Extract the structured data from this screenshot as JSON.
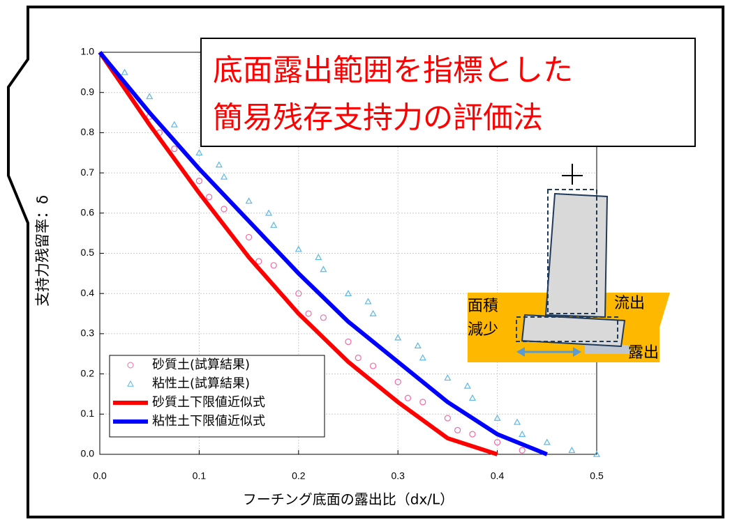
{
  "chart_data": {
    "type": "scatter",
    "title": [
      "底面露出範囲を指標とした",
      "簡易残存支持力の評価法"
    ],
    "x_label": "フーチング底面の露出比（dx/L）",
    "y_label": "支持力残留率：δ",
    "annotations": [
      "面積",
      "減少",
      "流出",
      "露出"
    ],
    "xlim": [
      0,
      0.5
    ],
    "ylim": [
      0,
      1
    ],
    "xticks": [
      {
        "value": 0,
        "label": "0.0"
      },
      0.1,
      0.2,
      0.3,
      0.4,
      0.5
    ],
    "yticks": [
      {
        "value": 0,
        "label": "0.0"
      },
      0.1,
      0.2,
      0.3,
      0.4,
      0.5,
      0.6,
      0.7,
      0.8,
      0.9,
      {
        "value": 1,
        "label": "1.0"
      }
    ],
    "grid": true,
    "series": [
      {
        "name": "砂質土(試算結果)",
        "mode": "circle",
        "color": "#f06aa8",
        "x": [
          0.025,
          0.05,
          0.075,
          0.1,
          0.125,
          0.15,
          0.175,
          0.2,
          0.225,
          0.25,
          0.275,
          0.3,
          0.325,
          0.35,
          0.375,
          0.4,
          0.425,
          0.06,
          0.11,
          0.16,
          0.21,
          0.26,
          0.31,
          0.36
        ],
        "y": [
          0.92,
          0.84,
          0.76,
          0.68,
          0.61,
          0.54,
          0.47,
          0.4,
          0.34,
          0.28,
          0.22,
          0.18,
          0.13,
          0.09,
          0.05,
          0.03,
          0.01,
          0.8,
          0.64,
          0.48,
          0.35,
          0.24,
          0.14,
          0.06
        ]
      },
      {
        "name": "粘性土(試算結果)",
        "mode": "triangle",
        "color": "#5bb8e8",
        "x": [
          0.025,
          0.05,
          0.075,
          0.1,
          0.125,
          0.15,
          0.175,
          0.2,
          0.225,
          0.25,
          0.275,
          0.3,
          0.325,
          0.35,
          0.375,
          0.4,
          0.425,
          0.45,
          0.475,
          0.5,
          0.12,
          0.17,
          0.22,
          0.27,
          0.32,
          0.37,
          0.42
        ],
        "y": [
          0.95,
          0.89,
          0.82,
          0.75,
          0.69,
          0.63,
          0.57,
          0.51,
          0.46,
          0.4,
          0.35,
          0.29,
          0.24,
          0.19,
          0.14,
          0.09,
          0.05,
          0.03,
          0.01,
          0,
          0.72,
          0.6,
          0.49,
          0.38,
          0.27,
          0.17,
          0.08
        ]
      },
      {
        "name": "砂質土下限値近似式",
        "mode": "line",
        "color": "#ff0000",
        "x": [
          0,
          0.05,
          0.1,
          0.15,
          0.2,
          0.25,
          0.3,
          0.35,
          0.4
        ],
        "y": [
          1,
          0.82,
          0.65,
          0.49,
          0.35,
          0.23,
          0.13,
          0.04,
          0
        ]
      },
      {
        "name": "粘性土下限値近似式",
        "mode": "line",
        "color": "#0000ff",
        "x": [
          0,
          0.05,
          0.1,
          0.15,
          0.2,
          0.25,
          0.3,
          0.35,
          0.4,
          0.45
        ],
        "y": [
          1,
          0.85,
          0.71,
          0.58,
          0.45,
          0.33,
          0.23,
          0.13,
          0.05,
          0
        ]
      }
    ]
  }
}
